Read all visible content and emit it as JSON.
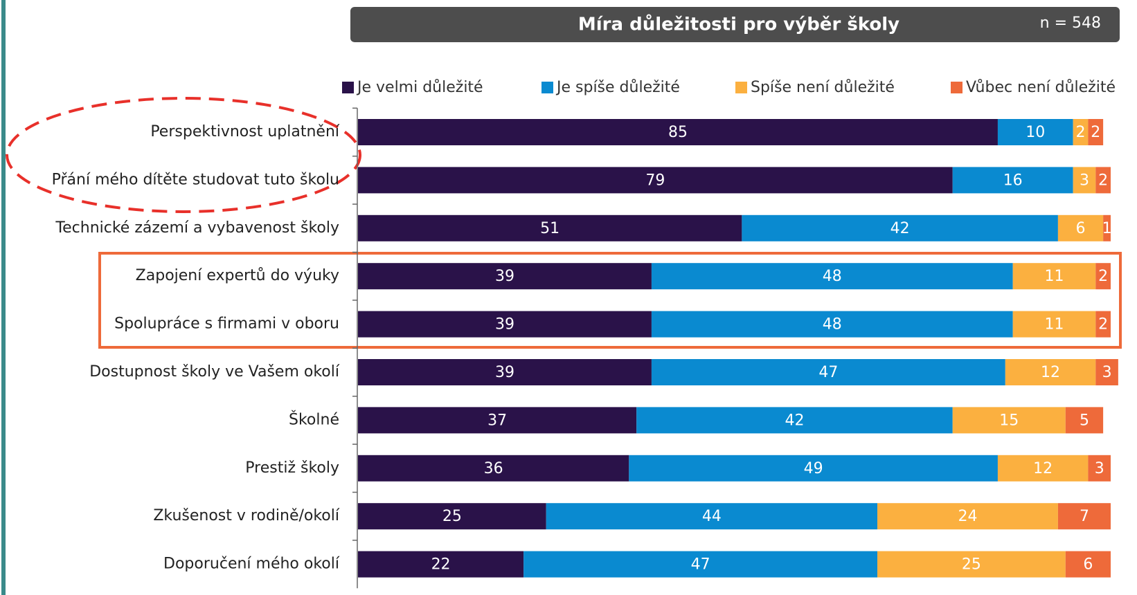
{
  "chart_data": {
    "type": "stacked-bar-horizontal",
    "title": "Míra důležitosti pro výběr školy",
    "subtitle": "n = 548",
    "categories": [
      "Perspektivnost uplatnění",
      "Přání mého dítěte studovat tuto školu",
      "Technické zázemí a vybavenost školy",
      "Zapojení expertů do výuky",
      "Spolupráce s firmami v oboru",
      "Dostupnost školy ve Vašem okolí",
      "Školné",
      "Prestiž školy",
      "Zkušenost v rodině/okolí",
      "Doporučení mého okolí"
    ],
    "series": [
      {
        "name": "Je velmi důležité",
        "color": "#2a1249",
        "values": [
          85,
          79,
          51,
          39,
          39,
          39,
          37,
          36,
          25,
          22
        ]
      },
      {
        "name": "Je spíše důležité",
        "color": "#0a8ad0",
        "values": [
          10,
          16,
          42,
          48,
          48,
          47,
          42,
          49,
          44,
          47
        ]
      },
      {
        "name": "Spíše není důležité",
        "color": "#fbb040",
        "values": [
          2,
          3,
          6,
          11,
          11,
          12,
          15,
          12,
          24,
          25
        ]
      },
      {
        "name": "Vůbec není důležité",
        "color": "#ee6a3a",
        "values": [
          2,
          2,
          1,
          2,
          2,
          3,
          5,
          3,
          7,
          6
        ]
      }
    ],
    "xlim": [
      0,
      100
    ],
    "legend": "top"
  }
}
